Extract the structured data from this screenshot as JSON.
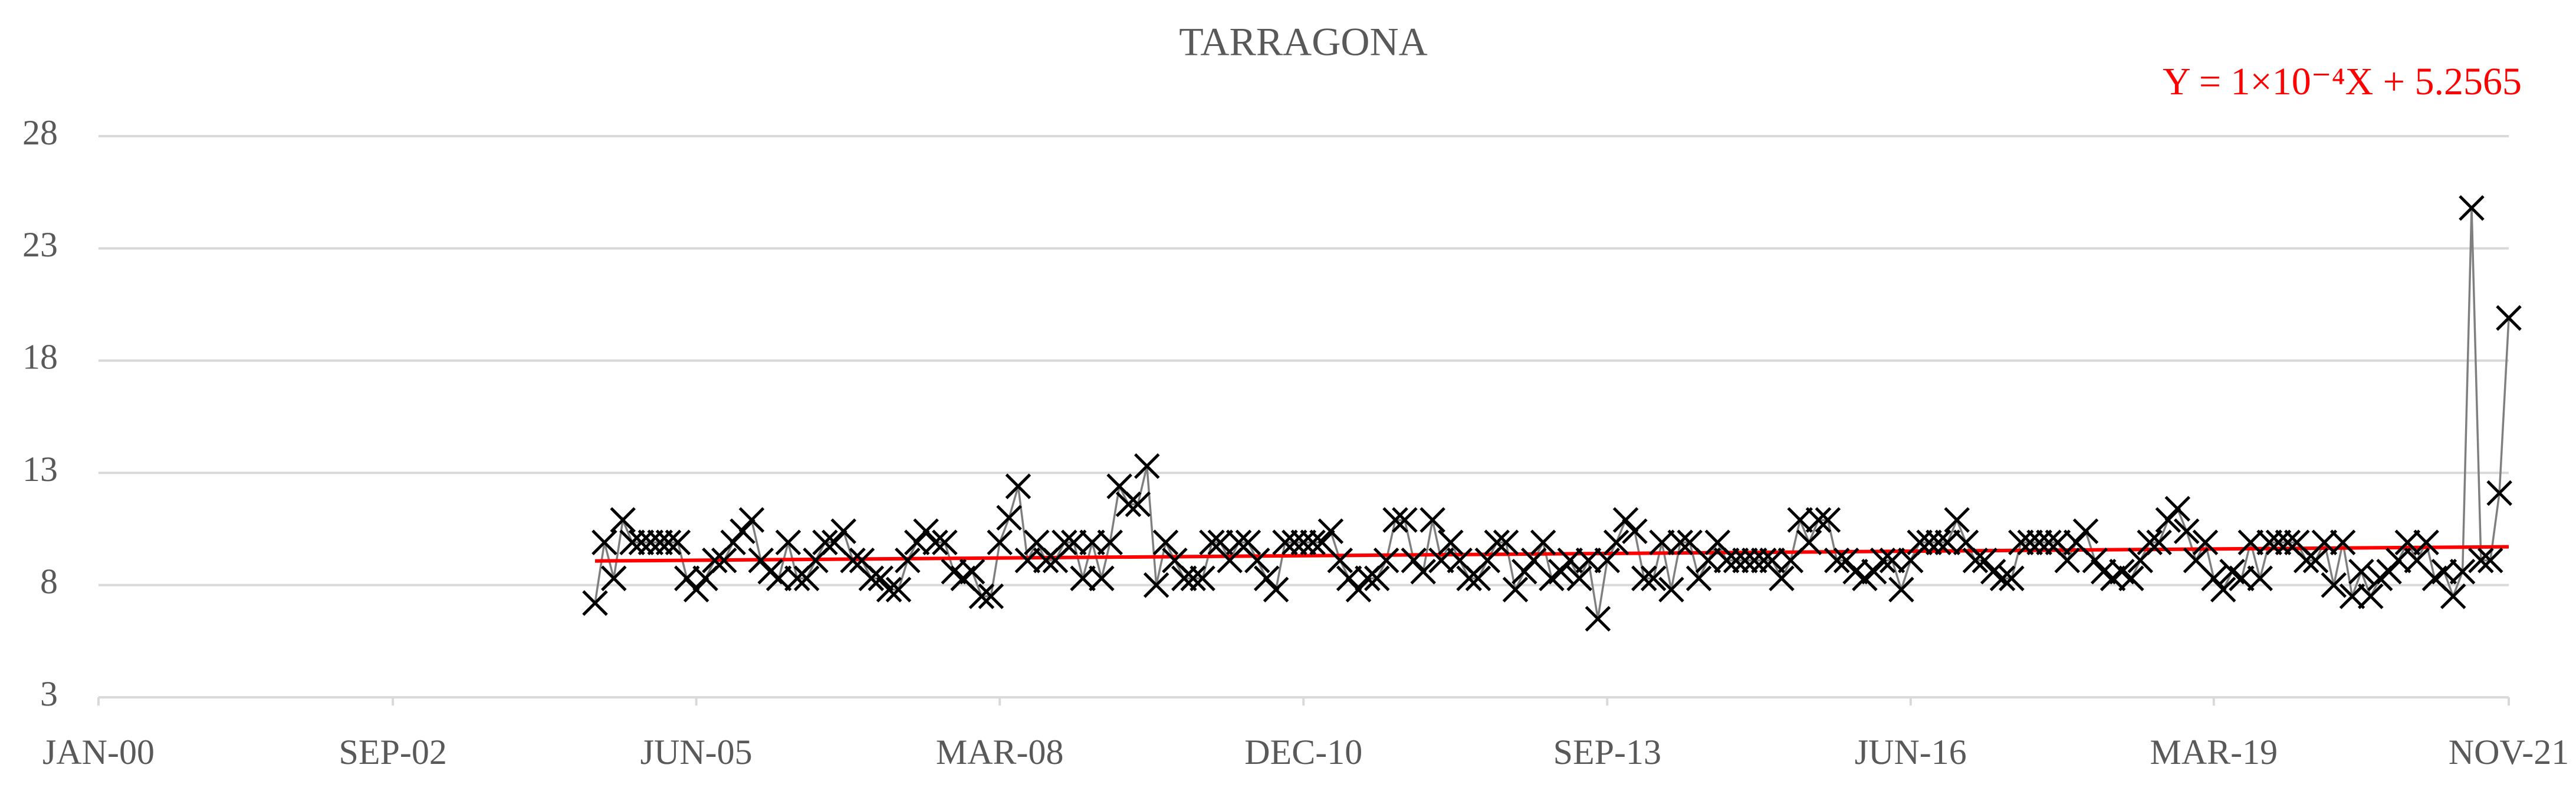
{
  "chart_data": {
    "type": "line",
    "title": "TARRAGONA",
    "grid": true,
    "xlim": [
      "2000-01",
      "2021-11"
    ],
    "xticks": [
      {
        "value": "2000-01",
        "label": "JAN-00"
      },
      {
        "value": "2002-09",
        "label": "SEP-02"
      },
      {
        "value": "2005-06",
        "label": "JUN-05"
      },
      {
        "value": "2008-03",
        "label": "MAR-08"
      },
      {
        "value": "2010-12",
        "label": "DEC-10"
      },
      {
        "value": "2013-09",
        "label": "SEP-13"
      },
      {
        "value": "2016-06",
        "label": "JUN-16"
      },
      {
        "value": "2019-03",
        "label": "MAR-19"
      },
      {
        "value": "2021-11",
        "label": "NOV-21"
      }
    ],
    "ylim": [
      3,
      28
    ],
    "yticks": [
      3,
      8,
      13,
      18,
      23,
      28
    ],
    "trendline": {
      "label": "Y = 1×10⁻⁴X + 5.2565",
      "slope": 0.0001,
      "intercept": 5.2565,
      "color": "#ff0000"
    },
    "x": [
      "2004-07",
      "2004-08",
      "2004-09",
      "2004-10",
      "2004-11",
      "2004-12",
      "2005-01",
      "2005-02",
      "2005-03",
      "2005-04",
      "2005-05",
      "2005-06",
      "2005-07",
      "2005-08",
      "2005-09",
      "2005-10",
      "2005-11",
      "2005-12",
      "2006-01",
      "2006-02",
      "2006-03",
      "2006-04",
      "2006-05",
      "2006-06",
      "2006-07",
      "2006-08",
      "2006-09",
      "2006-10",
      "2006-11",
      "2006-12",
      "2007-01",
      "2007-02",
      "2007-03",
      "2007-04",
      "2007-05",
      "2007-06",
      "2007-07",
      "2007-08",
      "2007-09",
      "2007-10",
      "2007-11",
      "2007-12",
      "2008-01",
      "2008-02",
      "2008-03",
      "2008-04",
      "2008-05",
      "2008-06",
      "2008-07",
      "2008-08",
      "2008-09",
      "2008-10",
      "2008-11",
      "2008-12",
      "2009-01",
      "2009-02",
      "2009-03",
      "2009-04",
      "2009-05",
      "2009-06",
      "2009-07",
      "2009-08",
      "2009-09",
      "2009-10",
      "2009-11",
      "2009-12",
      "2010-01",
      "2010-02",
      "2010-03",
      "2010-04",
      "2010-05",
      "2010-06",
      "2010-07",
      "2010-08",
      "2010-09",
      "2010-10",
      "2010-11",
      "2010-12",
      "2011-01",
      "2011-02",
      "2011-03",
      "2011-04",
      "2011-05",
      "2011-06",
      "2011-07",
      "2011-08",
      "2011-09",
      "2011-10",
      "2011-11",
      "2011-12",
      "2012-01",
      "2012-02",
      "2012-03",
      "2012-04",
      "2012-05",
      "2012-06",
      "2012-07",
      "2012-08",
      "2012-09",
      "2012-10",
      "2012-11",
      "2012-12",
      "2013-01",
      "2013-02",
      "2013-03",
      "2013-04",
      "2013-05",
      "2013-06",
      "2013-07",
      "2013-08",
      "2013-09",
      "2013-10",
      "2013-11",
      "2013-12",
      "2014-01",
      "2014-02",
      "2014-03",
      "2014-04",
      "2014-05",
      "2014-06",
      "2014-07",
      "2014-08",
      "2014-09",
      "2014-10",
      "2014-11",
      "2014-12",
      "2015-01",
      "2015-02",
      "2015-03",
      "2015-04",
      "2015-05",
      "2015-06",
      "2015-07",
      "2015-08",
      "2015-09",
      "2015-10",
      "2015-11",
      "2015-12",
      "2016-01",
      "2016-02",
      "2016-03",
      "2016-04",
      "2016-05",
      "2016-06",
      "2016-07",
      "2016-08",
      "2016-09",
      "2016-10",
      "2016-11",
      "2016-12",
      "2017-01",
      "2017-02",
      "2017-03",
      "2017-04",
      "2017-05",
      "2017-06",
      "2017-07",
      "2017-08",
      "2017-09",
      "2017-10",
      "2017-11",
      "2017-12",
      "2018-01",
      "2018-02",
      "2018-03",
      "2018-04",
      "2018-05",
      "2018-06",
      "2018-07",
      "2018-08",
      "2018-09",
      "2018-10",
      "2018-11",
      "2018-12",
      "2019-01",
      "2019-02",
      "2019-03",
      "2019-04",
      "2019-05",
      "2019-06",
      "2019-07",
      "2019-08",
      "2019-09",
      "2019-10",
      "2019-11",
      "2019-12",
      "2020-01",
      "2020-02",
      "2020-03",
      "2020-04",
      "2020-05",
      "2020-06",
      "2020-07",
      "2020-08",
      "2020-09",
      "2020-10",
      "2020-11",
      "2020-12",
      "2021-01",
      "2021-02",
      "2021-03",
      "2021-04",
      "2021-05",
      "2021-06",
      "2021-07",
      "2021-08",
      "2021-09",
      "2021-10",
      "2021-11"
    ],
    "series": [
      {
        "color": "#7f7f7f",
        "marker_color": "#000000",
        "values": [
          7.2,
          9.9,
          8.3,
          10.9,
          9.9,
          9.9,
          9.9,
          9.9,
          9.9,
          9.9,
          8.3,
          7.8,
          8.3,
          9.1,
          9.1,
          9.9,
          10.4,
          10.9,
          9.1,
          8.6,
          8.3,
          9.9,
          8.3,
          8.3,
          9.1,
          9.9,
          9.9,
          10.4,
          9.1,
          9.1,
          8.3,
          8.3,
          7.8,
          7.8,
          9.1,
          9.9,
          10.4,
          9.9,
          9.9,
          8.6,
          8.3,
          8.6,
          7.5,
          7.5,
          9.9,
          11.0,
          12.4,
          9.1,
          9.9,
          9.1,
          9.1,
          9.9,
          9.9,
          8.3,
          9.9,
          8.3,
          9.9,
          12.4,
          11.6,
          11.6,
          13.3,
          8.0,
          9.9,
          9.1,
          8.3,
          8.3,
          8.3,
          9.9,
          9.9,
          9.1,
          9.9,
          9.9,
          9.1,
          8.3,
          7.8,
          9.9,
          9.9,
          9.9,
          9.9,
          9.9,
          10.4,
          9.1,
          8.3,
          7.8,
          8.3,
          8.3,
          9.1,
          10.9,
          10.9,
          9.1,
          8.6,
          10.9,
          9.1,
          9.9,
          9.1,
          8.3,
          8.3,
          9.1,
          9.9,
          9.9,
          7.8,
          8.6,
          9.1,
          9.9,
          8.3,
          8.6,
          9.1,
          8.3,
          9.1,
          6.5,
          9.1,
          9.9,
          10.9,
          10.4,
          8.3,
          8.3,
          9.9,
          7.8,
          9.9,
          9.9,
          8.3,
          9.1,
          9.9,
          9.1,
          9.1,
          9.1,
          9.1,
          9.1,
          9.1,
          8.3,
          9.1,
          10.9,
          9.9,
          10.9,
          10.9,
          9.1,
          9.1,
          8.6,
          8.3,
          8.6,
          9.1,
          9.1,
          7.8,
          9.1,
          9.9,
          9.9,
          9.9,
          9.9,
          10.9,
          9.9,
          9.1,
          9.1,
          8.6,
          8.3,
          8.3,
          9.9,
          9.9,
          9.9,
          9.9,
          9.9,
          9.1,
          9.9,
          10.4,
          9.1,
          8.6,
          8.3,
          8.6,
          8.3,
          9.1,
          9.9,
          9.9,
          10.9,
          11.4,
          10.4,
          9.1,
          9.9,
          8.3,
          7.8,
          8.6,
          8.3,
          9.9,
          8.3,
          9.9,
          9.9,
          9.9,
          9.9,
          9.1,
          9.1,
          9.9,
          8.0,
          9.9,
          7.5,
          8.6,
          7.5,
          8.3,
          8.6,
          9.1,
          9.9,
          9.1,
          9.9,
          8.3,
          8.6,
          7.5,
          8.6,
          24.8,
          9.1,
          9.1,
          12.1,
          19.9
        ]
      }
    ]
  }
}
